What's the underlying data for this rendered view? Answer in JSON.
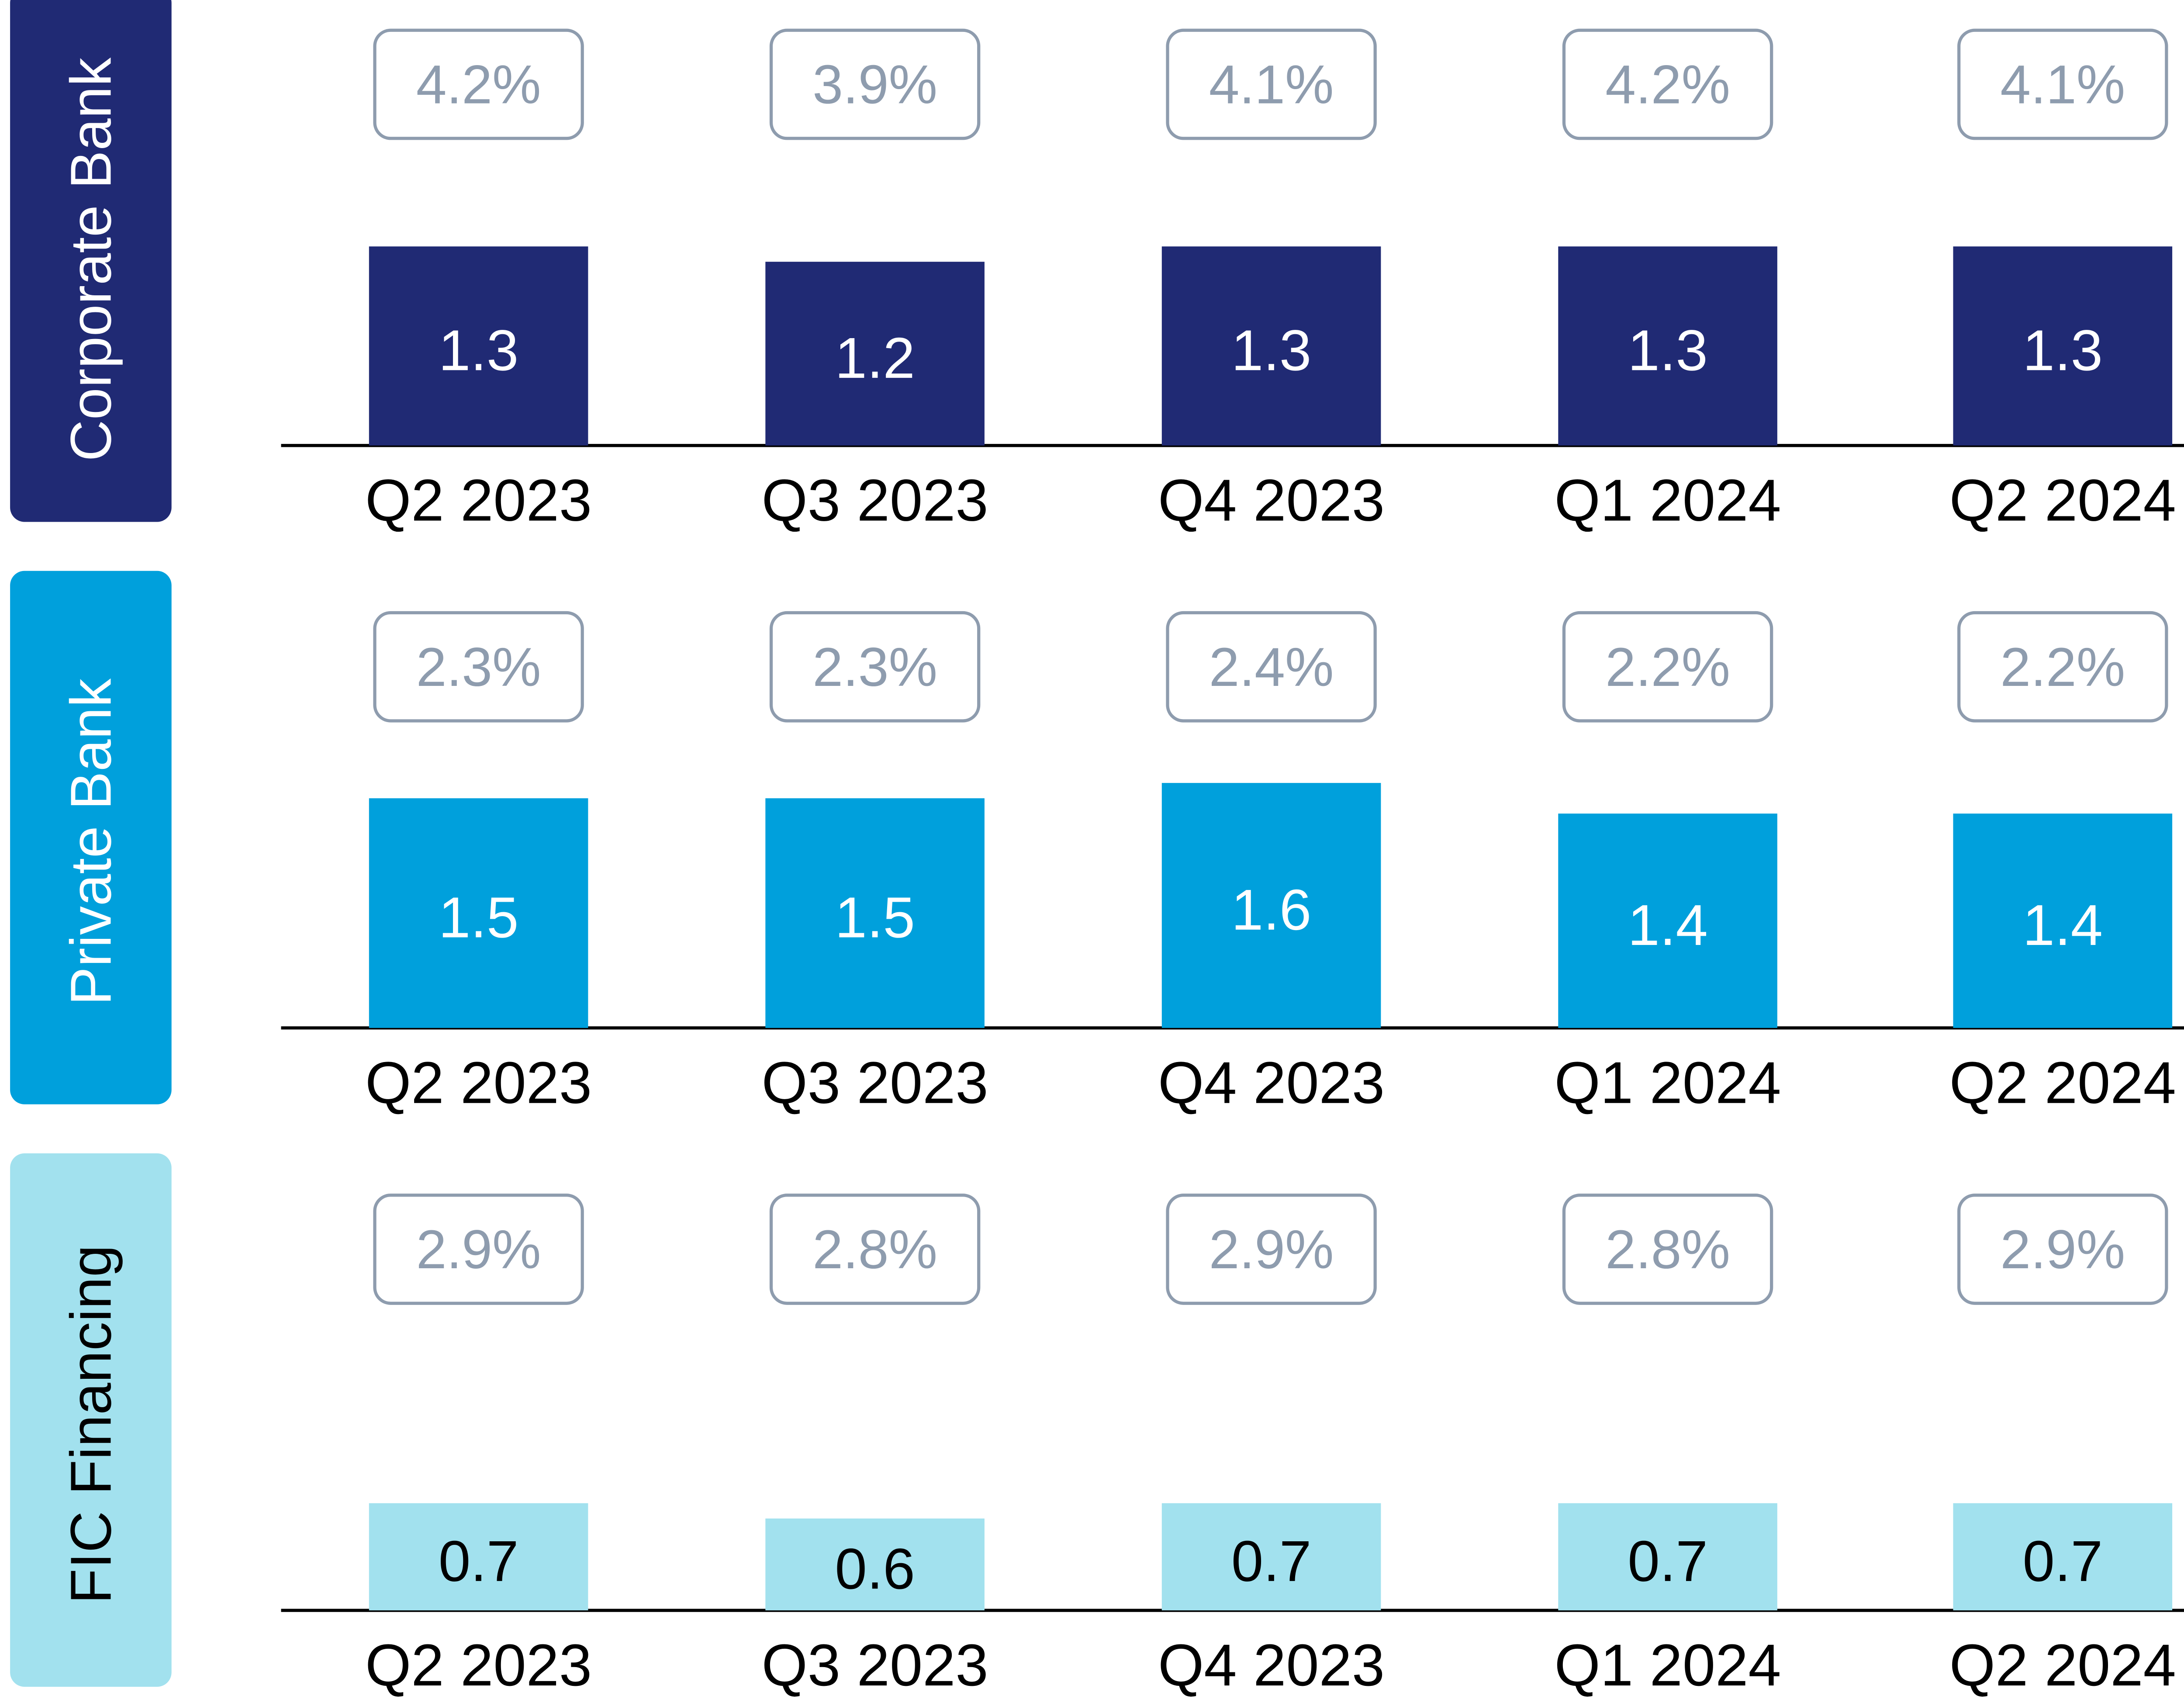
{
  "colors": {
    "corporate": "#202A74",
    "private": "#00A0DC",
    "fic": "#A2E1EE",
    "pill_border": "#8E9CAE",
    "pill_text": "#8E9CAE",
    "axis": "#000000"
  },
  "chart_data": [
    {
      "type": "bar",
      "panel_label": "Corporate Bank",
      "categories": [
        "Q2 2023",
        "Q3 2023",
        "Q4 2023",
        "Q1 2024",
        "Q2 2024"
      ],
      "values": [
        1.3,
        1.2,
        1.3,
        1.3,
        1.3
      ],
      "data_labels": [
        "1.3",
        "1.2",
        "1.3",
        "1.3",
        "1.3"
      ],
      "percent_labels": [
        "4.2%",
        "3.9%",
        "4.1%",
        "4.2%",
        "4.1%"
      ],
      "bar_color": "#202A74",
      "data_label_color": "#FFFFFF",
      "label_box_color": "#202A74",
      "label_text_color": "#FFFFFF"
    },
    {
      "type": "bar",
      "panel_label": "Private Bank",
      "categories": [
        "Q2 2023",
        "Q3 2023",
        "Q4 2023",
        "Q1 2024",
        "Q2 2024"
      ],
      "values": [
        1.5,
        1.5,
        1.6,
        1.4,
        1.4
      ],
      "data_labels": [
        "1.5",
        "1.5",
        "1.6",
        "1.4",
        "1.4"
      ],
      "percent_labels": [
        "2.3%",
        "2.3%",
        "2.4%",
        "2.2%",
        "2.2%"
      ],
      "bar_color": "#00A0DC",
      "data_label_color": "#FFFFFF",
      "label_box_color": "#00A0DC",
      "label_text_color": "#FFFFFF"
    },
    {
      "type": "bar",
      "panel_label": "FIC Financing",
      "categories": [
        "Q2 2023",
        "Q3 2023",
        "Q4 2023",
        "Q1 2024",
        "Q2 2024"
      ],
      "values": [
        0.7,
        0.6,
        0.7,
        0.7,
        0.7
      ],
      "data_labels": [
        "0.7",
        "0.6",
        "0.7",
        "0.7",
        "0.7"
      ],
      "percent_labels": [
        "2.9%",
        "2.8%",
        "2.9%",
        "2.8%",
        "2.9%"
      ],
      "bar_color": "#A2E1EE",
      "data_label_color": "#000000",
      "label_box_color": "#A2E1EE",
      "label_text_color": "#000000"
    }
  ]
}
